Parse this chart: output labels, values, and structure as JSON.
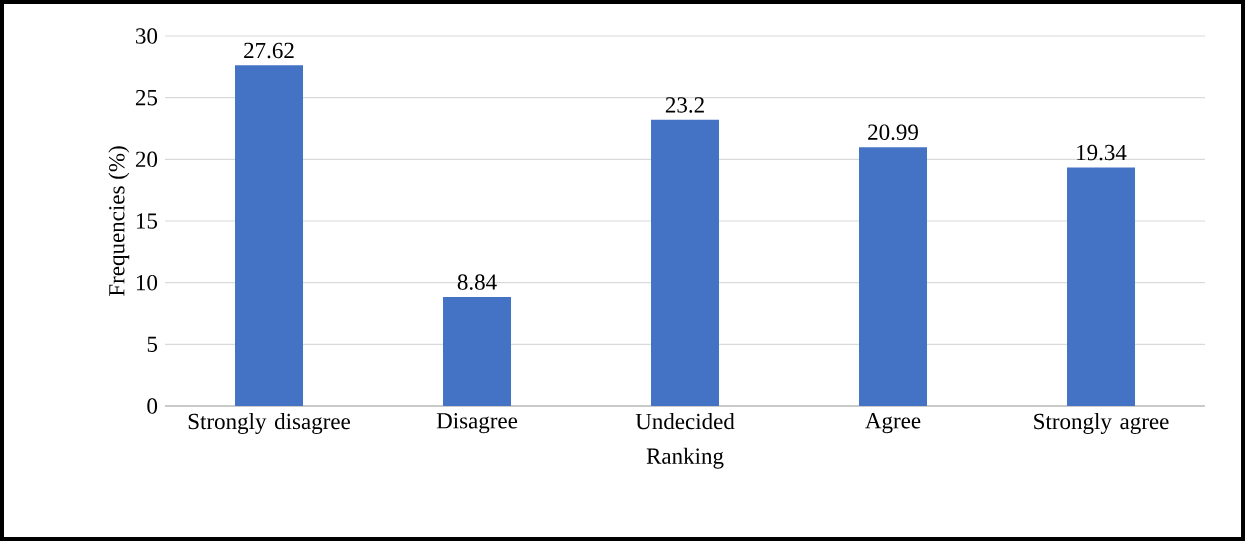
{
  "chart_data": {
    "type": "bar",
    "xlabel": "Ranking",
    "ylabel": "Frequencies (%)",
    "categories": [
      "Strongly disagree",
      "Disagree",
      "Undecided",
      "Agree",
      "Strongly agree"
    ],
    "values": [
      27.62,
      8.84,
      23.2,
      20.99,
      19.34
    ],
    "color": "#4472c4",
    "ylim": [
      0,
      30
    ],
    "yticks": [
      0,
      5,
      10,
      15,
      20,
      25,
      30
    ],
    "grid": "y",
    "data_labels": true
  }
}
